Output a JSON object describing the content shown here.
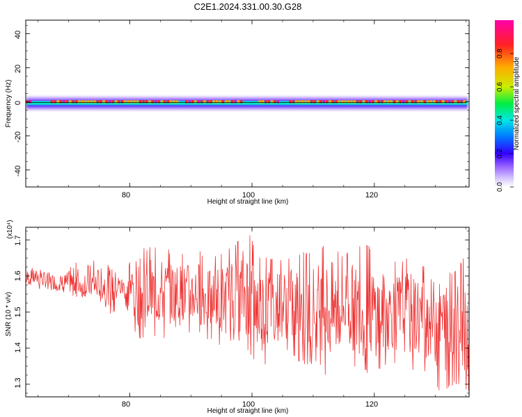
{
  "figure_title": "C2E1.2024.331.00.30.G28",
  "colors": {
    "trace": "#ee3333",
    "frame": "#000000",
    "colormap": [
      "#ffffff",
      "#d8c8ff",
      "#9a66ff",
      "#3300ff",
      "#0077ff",
      "#00e6e6",
      "#00ee44",
      "#ccee00",
      "#ffaa00",
      "#ff2222",
      "#ff00aa"
    ]
  },
  "chart_data": [
    {
      "type": "heatmap",
      "xlabel": "Height of straight line (km)",
      "ylabel": "Frequency (Hz)",
      "xlim": [
        63,
        135.5
      ],
      "ylim": [
        -50,
        48
      ],
      "xticks": [
        "80",
        "100",
        "120"
      ],
      "yticks": [
        "40",
        "20",
        "0",
        "-20",
        "-40"
      ],
      "colorbar": {
        "label": "Normalized spectral amplitude",
        "range": [
          0,
          1
        ],
        "ticks": [
          "0.0",
          "0.2",
          "0.4",
          "0.6",
          "0.8"
        ]
      },
      "ridge_frequency_hz": 0,
      "weak_segments_km": [
        [
          64,
          67
        ],
        [
          88,
          89
        ],
        [
          98.5,
          101
        ],
        [
          104.5,
          106
        ]
      ]
    },
    {
      "type": "line",
      "xlabel": "Height of straight line (km)",
      "ylabel": "SNR (10 * v/v)",
      "y_multiplier": "(x10⁴)",
      "xlim": [
        63,
        135.5
      ],
      "ylim": [
        1.265,
        1.735
      ],
      "xticks": [
        "80",
        "100",
        "120"
      ],
      "yticks": [
        "1.3",
        "1.4",
        "1.5",
        "1.6",
        "1.7"
      ],
      "series": [
        {
          "x": [
            63,
            65,
            67,
            69,
            71,
            73,
            75,
            77,
            79,
            81,
            83,
            85,
            87,
            89,
            91,
            93,
            95,
            97,
            99,
            101,
            103,
            105,
            107,
            109,
            111,
            113,
            115,
            117,
            119,
            121,
            123,
            125,
            127,
            129,
            131,
            133,
            135
          ],
          "y": [
            1.59,
            1.6,
            1.58,
            1.58,
            1.58,
            1.57,
            1.57,
            1.58,
            1.57,
            1.56,
            1.55,
            1.55,
            1.56,
            1.55,
            1.55,
            1.54,
            1.53,
            1.53,
            1.55,
            1.52,
            1.53,
            1.52,
            1.52,
            1.51,
            1.52,
            1.5,
            1.52,
            1.51,
            1.5,
            1.5,
            1.5,
            1.5,
            1.49,
            1.49,
            1.48,
            1.49,
            1.47
          ],
          "upper_envelope": [
            1.63,
            1.62,
            1.62,
            1.61,
            1.64,
            1.66,
            1.64,
            1.64,
            1.6,
            1.68,
            1.68,
            1.68,
            1.67,
            1.66,
            1.68,
            1.64,
            1.67,
            1.68,
            1.74,
            1.66,
            1.65,
            1.65,
            1.66,
            1.67,
            1.68,
            1.69,
            1.66,
            1.68,
            1.69,
            1.65,
            1.64,
            1.65,
            1.64,
            1.63,
            1.62,
            1.61,
            1.66
          ],
          "lower_envelope": [
            1.57,
            1.56,
            1.56,
            1.55,
            1.54,
            1.53,
            1.53,
            1.49,
            1.53,
            1.43,
            1.42,
            1.43,
            1.42,
            1.44,
            1.44,
            1.42,
            1.4,
            1.42,
            1.4,
            1.34,
            1.36,
            1.4,
            1.37,
            1.35,
            1.36,
            1.29,
            1.36,
            1.34,
            1.33,
            1.34,
            1.36,
            1.33,
            1.34,
            1.33,
            1.27,
            1.3,
            1.28
          ]
        }
      ]
    }
  ]
}
